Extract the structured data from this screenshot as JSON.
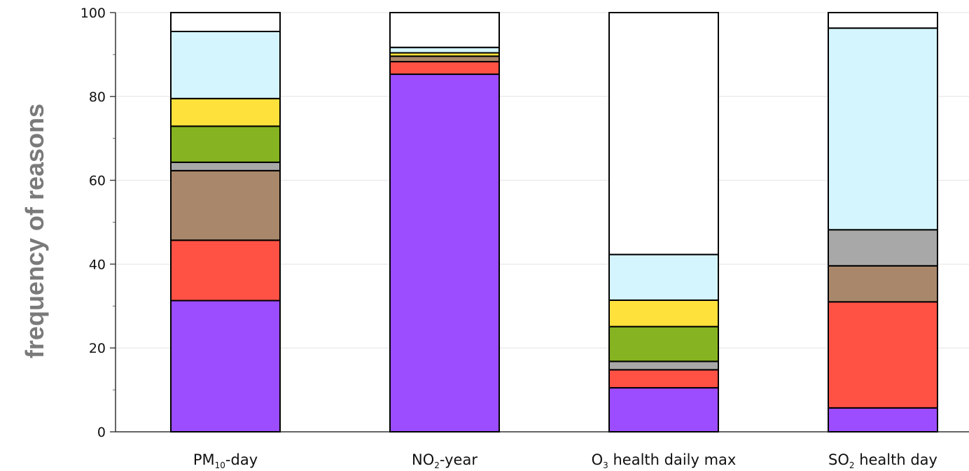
{
  "chart_data": {
    "type": "bar",
    "stacked": true,
    "ylabel": "frequency of reasons",
    "xlabel": "",
    "ylim": [
      0,
      100
    ],
    "yticks": [
      0,
      20,
      40,
      60,
      80,
      100
    ],
    "grid": "horizontal",
    "legend": "none",
    "categories": [
      {
        "main": "PM",
        "sub": "10",
        "suffix": "-day"
      },
      {
        "main": "NO",
        "sub": "2",
        "suffix": "-year"
      },
      {
        "main": "O",
        "sub": "3",
        "suffix": "  health daily max"
      },
      {
        "main": "SO",
        "sub": "2",
        "suffix": "  health day"
      }
    ],
    "series": [
      {
        "color": "#9b4dff",
        "values": [
          31.3,
          85.3,
          10.5,
          5.7
        ]
      },
      {
        "color": "#ff5245",
        "values": [
          14.4,
          3.0,
          4.3,
          25.3
        ]
      },
      {
        "color": "#a9876a",
        "values": [
          16.6,
          1.3,
          0.0,
          8.6
        ]
      },
      {
        "color": "#a8a8a8",
        "values": [
          2.0,
          0.0,
          2.0,
          8.6
        ]
      },
      {
        "color": "#86b321",
        "values": [
          8.6,
          0.0,
          8.3,
          0.0
        ]
      },
      {
        "color": "#ffe13b",
        "values": [
          6.6,
          0.8,
          6.3,
          0.0
        ]
      },
      {
        "color": "#d5f5fe",
        "values": [
          16.0,
          1.3,
          10.9,
          48.1
        ]
      },
      {
        "color": "#ffffff",
        "values": [
          4.5,
          8.3,
          57.7,
          3.7
        ]
      }
    ]
  }
}
